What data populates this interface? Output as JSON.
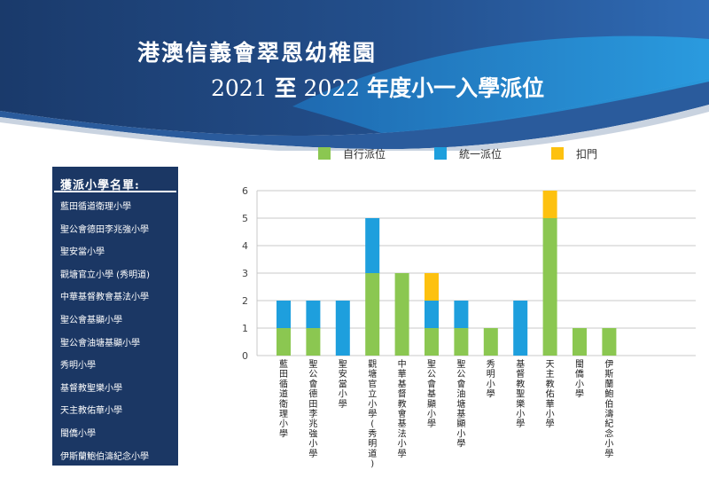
{
  "header": {
    "school_name": "港澳信義會翠恩幼稚園",
    "year_from": "2021",
    "year_to_word": "至",
    "year_to": "2022",
    "subtitle_suffix": "年度小一入學派位"
  },
  "side_panel": {
    "title": "獲派小學名單:",
    "schools": [
      "藍田循道衛理小學",
      "聖公會德田李兆強小學",
      "聖安當小學",
      "觀塘官立小學 (秀明道)",
      "中華基督教會基法小學",
      "聖公會基顯小學",
      "聖公會油塘基顯小學",
      "秀明小學",
      "基督教聖樂小學",
      "天主教佑華小學",
      "閩僑小學",
      "伊斯蘭鮑伯濤紀念小學"
    ]
  },
  "colors": {
    "self_allocation": "#8bc751",
    "central_allocation": "#1e9fdd",
    "door_knocking": "#fdc10f",
    "panel": "#1b3764"
  },
  "chart_data": {
    "type": "bar",
    "stacked": true,
    "categories": [
      "藍田循道衛理小學",
      "聖公會德田李兆強小學",
      "聖安當小學",
      "觀塘官立小學(秀明道)",
      "中華基督教會基法小學",
      "聖公會基顯小學",
      "聖公會油塘基顯小學",
      "秀明小學",
      "基督教聖樂小學",
      "天主教佑華小學",
      "閩僑小學",
      "伊斯蘭鮑伯濤紀念小學"
    ],
    "series": [
      {
        "name": "自行派位",
        "color": "#8bc751",
        "values": [
          1,
          1,
          0,
          3,
          3,
          1,
          1,
          1,
          0,
          5,
          1,
          1
        ]
      },
      {
        "name": "統一派位",
        "color": "#1e9fdd",
        "values": [
          1,
          1,
          2,
          2,
          0,
          1,
          1,
          0,
          2,
          0,
          0,
          0
        ]
      },
      {
        "name": "扣門",
        "color": "#fdc10f",
        "values": [
          0,
          0,
          0,
          0,
          0,
          1,
          0,
          0,
          0,
          1,
          0,
          0
        ]
      }
    ],
    "ylim": [
      0,
      6
    ],
    "yticks": [
      "0",
      "1",
      "2",
      "3",
      "4",
      "5",
      "6"
    ],
    "grid": true,
    "legend_position": "top"
  }
}
